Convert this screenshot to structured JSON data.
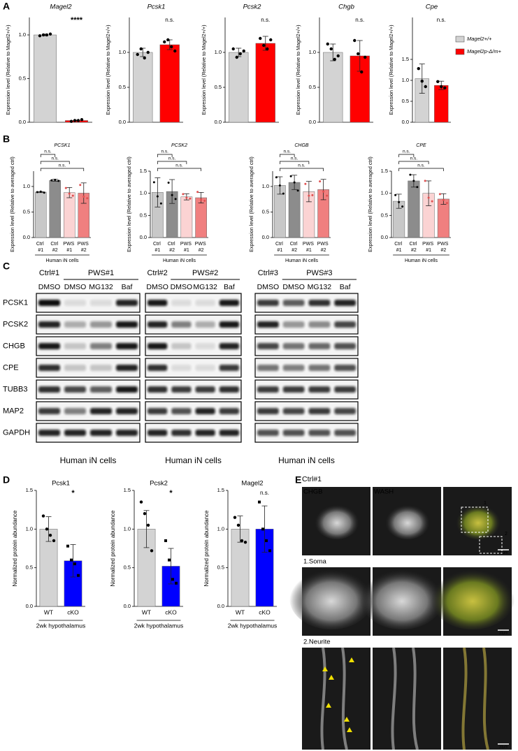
{
  "panel_labels": [
    "A",
    "B",
    "C",
    "D",
    "E"
  ],
  "legend": [
    {
      "name": "Magel2+/+",
      "color": "#d3d3d3"
    },
    {
      "name": "Magel2p-Δ/m+",
      "color": "#ff0000"
    }
  ],
  "chart_data": [
    {
      "type": "bar",
      "title": "Magel2",
      "ylabel": "Expression level (Relative to Magel2+/+)",
      "ylim": [
        0,
        1.2
      ],
      "yticks": [
        {
          "value": 0,
          "label": "0.0"
        },
        {
          "value": 0.5,
          "label": "0.5"
        },
        {
          "value": 1,
          "label": "1.0"
        }
      ],
      "values": [
        1.0,
        0.02
      ],
      "errors": [
        0.01,
        0.005
      ],
      "colors": [
        "#d3d3d3",
        "#ff0000"
      ],
      "points": [
        [
          0.99,
          1.0,
          1.0,
          1.01
        ],
        [
          0.01,
          0.02,
          0.02,
          0.03
        ]
      ],
      "annotation": "****"
    },
    {
      "type": "bar",
      "title": "Pcsk1",
      "ylabel": "Expression level (Relative to Magel2+/+)",
      "ylim": [
        0,
        1.5
      ],
      "yticks": [
        {
          "value": 0,
          "label": "0.0"
        },
        {
          "value": 0.5,
          "label": "0.5"
        },
        {
          "value": 1,
          "label": "1.0"
        }
      ],
      "values": [
        1.0,
        1.11
      ],
      "errors": [
        0.06,
        0.07
      ],
      "colors": [
        "#d3d3d3",
        "#ff0000"
      ],
      "points": [
        [
          0.97,
          1.05,
          0.92,
          1.0
        ],
        [
          1.15,
          1.18,
          1.08,
          1.02
        ]
      ],
      "annotation": "n.s."
    },
    {
      "type": "bar",
      "title": "Pcsk2",
      "ylabel": "Expression level (Relative to Magel2+/+)",
      "ylim": [
        0,
        1.5
      ],
      "yticks": [
        {
          "value": 0,
          "label": "0.0"
        },
        {
          "value": 0.5,
          "label": "0.5"
        },
        {
          "value": 1,
          "label": "1.0"
        }
      ],
      "values": [
        1.0,
        1.13
      ],
      "errors": [
        0.06,
        0.1
      ],
      "colors": [
        "#d3d3d3",
        "#ff0000"
      ],
      "points": [
        [
          1.05,
          0.93,
          0.98,
          1.02
        ],
        [
          1.2,
          1.1,
          1.05,
          1.18
        ]
      ],
      "annotation": "n.s."
    },
    {
      "type": "bar",
      "title": "Chgb",
      "ylabel": "Expression level (Relative to Magel2+/+)",
      "ylim": [
        0,
        1.5
      ],
      "yticks": [
        {
          "value": 0,
          "label": "0.0"
        },
        {
          "value": 0.5,
          "label": "0.5"
        },
        {
          "value": 1,
          "label": "1.0"
        }
      ],
      "values": [
        1.0,
        0.95
      ],
      "errors": [
        0.12,
        0.22
      ],
      "colors": [
        "#d3d3d3",
        "#ff0000"
      ],
      "points": [
        [
          1.12,
          1.05,
          0.9,
          0.95
        ],
        [
          1.17,
          0.98,
          0.72,
          0.93
        ]
      ],
      "annotation": "n.s."
    },
    {
      "type": "bar",
      "title": "Cpe",
      "ylabel": "Expression level (Relative to Magel2+/+)",
      "ylim": [
        0,
        2.5
      ],
      "yticks": [
        {
          "value": 0,
          "label": "0.0"
        },
        {
          "value": 0.5,
          "label": "0.5"
        },
        {
          "value": 1,
          "label": "1.0"
        },
        {
          "value": 1.5,
          "label": "1.5"
        }
      ],
      "values": [
        1.04,
        0.88
      ],
      "errors": [
        0.35,
        0.1
      ],
      "colors": [
        "#d3d3d3",
        "#ff0000"
      ],
      "points": [
        [
          1.28,
          0.98,
          0.85
        ],
        [
          0.97,
          0.85,
          0.82
        ]
      ],
      "annotation": "n.s."
    },
    {
      "type": "bar",
      "title": "PCSK1",
      "ylabel": "Expression level (Relative to averaged ctrl)",
      "xlabel": "Human iN cells",
      "categories": [
        "Ctrl #1",
        "Ctrl #2",
        "PWS #1",
        "PWS #2"
      ],
      "ylim": [
        0,
        1.3
      ],
      "yticks": [
        {
          "value": 0,
          "label": "0.0"
        },
        {
          "value": 0.5,
          "label": "0.5"
        },
        {
          "value": 1,
          "label": "1.0"
        }
      ],
      "values": [
        0.89,
        1.12,
        0.88,
        0.87
      ],
      "errors": [
        0.01,
        0.02,
        0.1,
        0.2
      ],
      "colors": [
        "#c8c8c8",
        "#8c8c8c",
        "#fbd3d3",
        "#f07f7f"
      ],
      "points": [
        [
          0.89,
          0.9,
          0.88
        ],
        [
          1.12,
          1.13,
          1.11
        ],
        [
          0.97,
          0.86,
          0.82
        ],
        [
          1.03,
          0.8,
          0.77
        ]
      ],
      "annotations": [
        "n.s.",
        "n.s.",
        "n.s."
      ]
    },
    {
      "type": "bar",
      "title": "PCSK2",
      "ylabel": "Expression level (Relative to averaged ctrl)",
      "xlabel": "Human iN cells",
      "categories": [
        "Ctrl #1",
        "Ctrl #2",
        "PWS #1",
        "PWS #2"
      ],
      "ylim": [
        0,
        1.5
      ],
      "yticks": [
        {
          "value": 0,
          "label": "0.0"
        },
        {
          "value": 0.5,
          "label": "0.5"
        },
        {
          "value": 1,
          "label": "1.0"
        },
        {
          "value": 1.5,
          "label": "1.5"
        }
      ],
      "values": [
        1.02,
        1.04,
        0.92,
        0.9
      ],
      "errors": [
        0.33,
        0.27,
        0.07,
        0.12
      ],
      "colors": [
        "#c8c8c8",
        "#8c8c8c",
        "#fbd3d3",
        "#f07f7f"
      ],
      "points": [
        [
          1.25,
          0.93,
          0.77
        ],
        [
          1.24,
          0.96,
          0.87
        ],
        [
          0.98,
          0.9,
          0.88
        ],
        [
          1.03,
          0.85,
          0.83
        ]
      ],
      "annotations": [
        "n.s.",
        "n.s.",
        "n.s."
      ]
    },
    {
      "type": "bar",
      "title": "CHGB",
      "ylabel": "Expression level (Relative to averaged ctrl)",
      "xlabel": "Human iN cells",
      "categories": [
        "Ctrl #1",
        "Ctrl #2",
        "PWS #1",
        "PWS #2"
      ],
      "ylim": [
        0,
        1.3
      ],
      "yticks": [
        {
          "value": 0,
          "label": "0.0"
        },
        {
          "value": 0.5,
          "label": "0.5"
        },
        {
          "value": 1,
          "label": "1.0"
        }
      ],
      "values": [
        1.02,
        1.08,
        0.9,
        0.94
      ],
      "errors": [
        0.17,
        0.14,
        0.2,
        0.2
      ],
      "colors": [
        "#c8c8c8",
        "#8c8c8c",
        "#fbd3d3",
        "#f07f7f"
      ],
      "points": [
        [
          1.18,
          1.02,
          0.86
        ],
        [
          1.2,
          1.08,
          0.92
        ],
        [
          1.05,
          0.82,
          0.83
        ],
        [
          1.1,
          0.9,
          0.82
        ]
      ],
      "annotations": [
        "n.s.",
        "n.s.",
        "n.s."
      ]
    },
    {
      "type": "bar",
      "title": "CPE",
      "ylabel": "Expression level (Relative to averaged ctrl)",
      "xlabel": "Human iN cells",
      "categories": [
        "Ctrl #1",
        "Ctrl #2",
        "PWS #1",
        "PWS #2"
      ],
      "ylim": [
        0,
        1.5
      ],
      "yticks": [
        {
          "value": 0,
          "label": "0.0"
        },
        {
          "value": 0.5,
          "label": "0.5"
        },
        {
          "value": 1,
          "label": "1.0"
        },
        {
          "value": 1.5,
          "label": "1.5"
        }
      ],
      "values": [
        0.82,
        1.28,
        1.0,
        0.87
      ],
      "errors": [
        0.16,
        0.14,
        0.28,
        0.12
      ],
      "colors": [
        "#c8c8c8",
        "#8c8c8c",
        "#fbd3d3",
        "#f07f7f"
      ],
      "points": [
        [
          0.96,
          0.8,
          0.7
        ],
        [
          1.42,
          1.28,
          1.14
        ],
        [
          1.28,
          0.9,
          0.82
        ],
        [
          0.98,
          0.85,
          0.78
        ]
      ],
      "annotations": [
        "n.s.",
        "n.s.",
        "n.s."
      ]
    },
    {
      "type": "bar",
      "title": "Pcsk1",
      "ylabel": "Normalized protein abundance",
      "xlabel": "2wk hypothalamus",
      "categories": [
        "WT",
        "cKO"
      ],
      "ylim": [
        0,
        1.5
      ],
      "yticks": [
        {
          "value": 0,
          "label": "0.0"
        },
        {
          "value": 0.5,
          "label": "0.5"
        },
        {
          "value": 1,
          "label": "1.0"
        },
        {
          "value": 1.5,
          "label": "1.5"
        }
      ],
      "values": [
        1.0,
        0.59
      ],
      "errors": [
        0.16,
        0.21
      ],
      "colors": [
        "#d3d3d3",
        "#0000ff"
      ],
      "points": [
        [
          1.17,
          1.0,
          0.92,
          0.85
        ],
        [
          0.78,
          0.6,
          0.55,
          0.4
        ]
      ],
      "annotation": "*"
    },
    {
      "type": "bar",
      "title": "Pcsk2",
      "ylabel": "Normalized protein abundance",
      "xlabel": "2wk hypothalamus",
      "categories": [
        "WT",
        "cKO"
      ],
      "ylim": [
        0,
        1.5
      ],
      "yticks": [
        {
          "value": 0,
          "label": "0.0"
        },
        {
          "value": 0.5,
          "label": "0.5"
        },
        {
          "value": 1,
          "label": "1.0"
        },
        {
          "value": 1.5,
          "label": "1.5"
        }
      ],
      "values": [
        1.0,
        0.52
      ],
      "errors": [
        0.24,
        0.23
      ],
      "colors": [
        "#d3d3d3",
        "#0000ff"
      ],
      "points": [
        [
          1.35,
          1.2,
          1.05,
          0.72
        ],
        [
          0.85,
          0.6,
          0.35,
          0.3
        ]
      ],
      "annotation": "*"
    },
    {
      "type": "bar",
      "title": "Magel2",
      "ylabel": "Normalized protein abundance",
      "xlabel": "2wk hypothalamus",
      "categories": [
        "WT",
        "cKO"
      ],
      "ylim": [
        0,
        1.5
      ],
      "yticks": [
        {
          "value": 0,
          "label": "0.0"
        },
        {
          "value": 0.5,
          "label": "0.5"
        },
        {
          "value": 1,
          "label": "1.0"
        },
        {
          "value": 1.5,
          "label": "1.5"
        }
      ],
      "values": [
        1.0,
        1.0
      ],
      "errors": [
        0.17,
        0.3
      ],
      "colors": [
        "#d3d3d3",
        "#0000ff"
      ],
      "points": [
        [
          1.15,
          1.05,
          0.85,
          0.83
        ],
        [
          1.35,
          1.0,
          0.85,
          0.72
        ]
      ],
      "annotation": "n.s."
    }
  ],
  "blot": {
    "groups": [
      {
        "control": "Ctrl#1",
        "disease": "PWS#1"
      },
      {
        "control": "Ctrl#2",
        "disease": "PWS#2"
      },
      {
        "control": "Ctrl#3",
        "disease": "PWS#3"
      }
    ],
    "lanes": [
      "DMSO",
      "DMSO",
      "MG132",
      "Baf"
    ],
    "proteins": [
      "PCSK1",
      "PCSK2",
      "CHGB",
      "CPE",
      "TUBB3",
      "MAP2",
      "GAPDH"
    ],
    "caption": "Human iN cells"
  },
  "microscopy": {
    "condition": "Ctrl#1",
    "channels": [
      "CHGB",
      "WASH"
    ],
    "rows": [
      "1.Soma",
      "2.Neurite"
    ],
    "insets": [
      "1",
      "2"
    ],
    "scale_bar": "10μm"
  }
}
